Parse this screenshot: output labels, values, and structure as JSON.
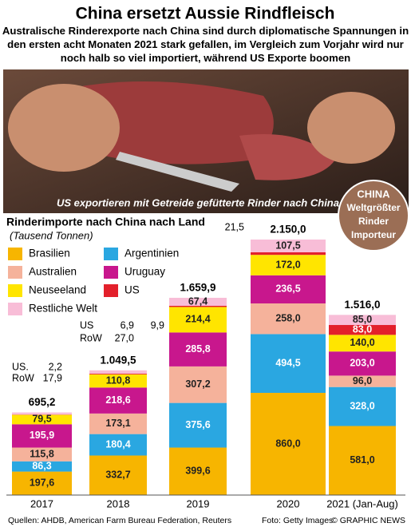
{
  "title": "China ersetzt Aussie Rindfleisch",
  "subtitle": "Australische Rinderexporte nach China sind durch diplomatische Spannungen in den ersten acht Monaten 2021 stark gefallen, im Vergleich zum Vorjahr wird nur noch halb so viel importiert, während US Exporte boomen",
  "photo_caption": "US exportieren mit Getreide gefütterte Rinder nach China",
  "badge": [
    "CHINA",
    "Weltgrößter",
    "Rinder",
    "Importeur"
  ],
  "chart_data": {
    "type": "stacked_bar",
    "title": "Rinderimporte nach China nach Land",
    "subtitle": "(Tausend Tonnen)",
    "categories": [
      "2017",
      "2018",
      "2019",
      "2020",
      "2021 (Jan-Aug)"
    ],
    "series": [
      {
        "name": "Brasilien",
        "color": "#f7b500",
        "values": [
          197.6,
          332.7,
          399.6,
          860.0,
          581.0
        ],
        "value_labels": [
          "197,6",
          "332,7",
          "399,6",
          "860,0",
          "581,0"
        ]
      },
      {
        "name": "Argentinien",
        "color": "#2aa7e1",
        "values": [
          86.3,
          180.4,
          375.6,
          494.5,
          328.0
        ],
        "value_labels": [
          "86,3",
          "180,4",
          "375,6",
          "494,5",
          "328,0"
        ]
      },
      {
        "name": "Australien",
        "color": "#f5b29b",
        "values": [
          115.8,
          173.1,
          307.2,
          258.0,
          96.0
        ],
        "value_labels": [
          "115,8",
          "173,1",
          "307,2",
          "258,0",
          "96,0"
        ]
      },
      {
        "name": "Uruguay",
        "color": "#c8178d",
        "values": [
          195.9,
          218.6,
          285.8,
          236.5,
          203.0
        ],
        "value_labels": [
          "195,9",
          "218,6",
          "285,8",
          "236,5",
          "203,0"
        ]
      },
      {
        "name": "Neuseeland",
        "color": "#ffe500",
        "values": [
          79.5,
          110.8,
          214.4,
          172.0,
          140.0
        ],
        "value_labels": [
          "79,5",
          "110,8",
          "214,4",
          "172,0",
          "140,0"
        ]
      },
      {
        "name": "US",
        "color": "#e3202b",
        "values": [
          2.2,
          6.9,
          9.9,
          21.5,
          83.0
        ],
        "value_labels": [
          "2,2",
          "6,9",
          "9,9",
          "21,5",
          "83,0"
        ]
      },
      {
        "name": "Restliche Welt",
        "color": "#f8bdd7",
        "values": [
          17.9,
          27.0,
          67.4,
          107.5,
          85.0
        ],
        "value_labels": [
          "17,9",
          "27,0",
          "67,4",
          "107,5",
          "85,0"
        ]
      }
    ],
    "totals": [
      695.2,
      1049.5,
      1659.9,
      2150.0,
      1516.0
    ],
    "total_labels": [
      "695,2",
      "1.049,5",
      "1.659,9",
      "2.150,0",
      "1.516,0"
    ],
    "annotations": [
      "US.",
      "RoW",
      "US",
      "RoW"
    ],
    "ylim": [
      0,
      2150
    ]
  },
  "footer": {
    "sources": "Quellen: AHDB, American Farm Bureau Federation, Reuters",
    "photo": "Foto: Getty Images",
    "credit": "© GRAPHIC NEWS"
  }
}
